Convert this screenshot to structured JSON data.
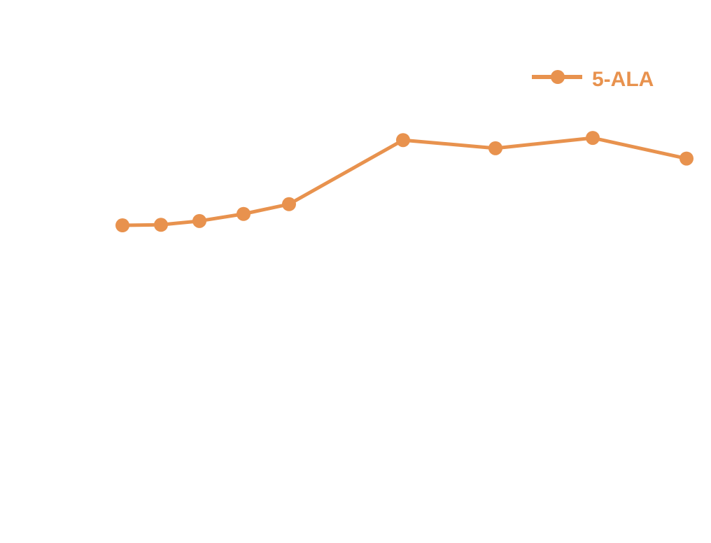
{
  "chart_data": {
    "type": "line",
    "title": "",
    "xlabel": "",
    "ylabel": "",
    "grid": false,
    "legend_position": "top-right",
    "x": [
      1,
      2,
      3,
      4,
      5,
      6,
      7,
      8,
      9
    ],
    "ylim": [
      0,
      100
    ],
    "series": [
      {
        "name": "5-ALA",
        "color": "#E8924E",
        "values": [
          58.5,
          58.6,
          59.3,
          60.6,
          62.4,
          74.2,
          72.7,
          74.6,
          70.8
        ]
      }
    ]
  }
}
